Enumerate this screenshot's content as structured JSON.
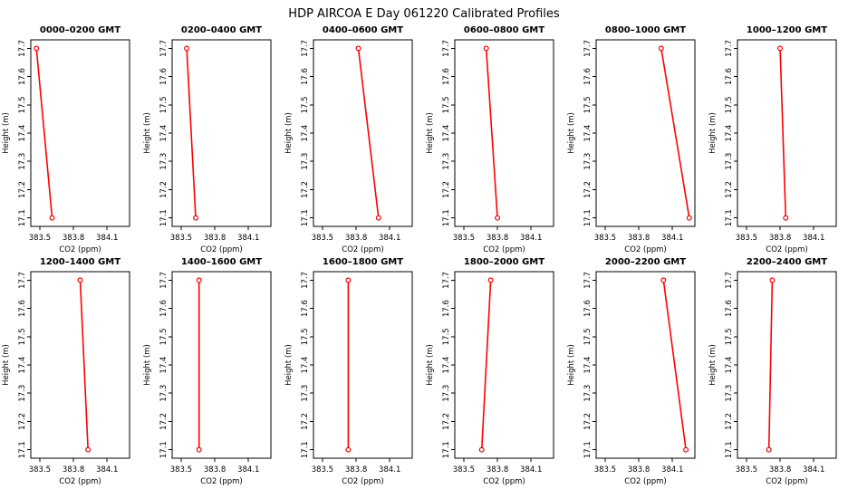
{
  "title": "HDP AIRCOA E  Day 061220  Calibrated Profiles",
  "chart_data": {
    "type": "line",
    "layout": {
      "rows": 2,
      "cols": 6,
      "grid": false,
      "legend": "none"
    },
    "xlabel": "CO2 (ppm)",
    "ylabel": "Height (m)",
    "x_ticks": [
      383.5,
      383.8,
      384.1
    ],
    "y_ticks": [
      17.1,
      17.2,
      17.3,
      17.4,
      17.5,
      17.6,
      17.7
    ],
    "xlim": [
      383.42,
      384.3
    ],
    "ylim": [
      17.07,
      17.73
    ],
    "series_color": "#ff0000",
    "marker": "open-circle",
    "panels": [
      {
        "title": "0000–0200 GMT",
        "heights": [
          17.7,
          17.1
        ],
        "co2": [
          383.47,
          383.61
        ]
      },
      {
        "title": "0200–0400 GMT",
        "heights": [
          17.7,
          17.1
        ],
        "co2": [
          383.55,
          383.63
        ]
      },
      {
        "title": "0400–0600 GMT",
        "heights": [
          17.7,
          17.1
        ],
        "co2": [
          383.82,
          384.0
        ]
      },
      {
        "title": "0600–0800 GMT",
        "heights": [
          17.7,
          17.1
        ],
        "co2": [
          383.7,
          383.8
        ]
      },
      {
        "title": "0800–1000 GMT",
        "heights": [
          17.7,
          17.1
        ],
        "co2": [
          384.0,
          384.25
        ]
      },
      {
        "title": "1000–1200 GMT",
        "heights": [
          17.7,
          17.1
        ],
        "co2": [
          383.8,
          383.85
        ]
      },
      {
        "title": "1200–1400 GMT",
        "heights": [
          17.7,
          17.1
        ],
        "co2": [
          383.86,
          383.93
        ]
      },
      {
        "title": "1400–1600 GMT",
        "heights": [
          17.7,
          17.1
        ],
        "co2": [
          383.66,
          383.66
        ]
      },
      {
        "title": "1600–1800 GMT",
        "heights": [
          17.7,
          17.1
        ],
        "co2": [
          383.73,
          383.73
        ]
      },
      {
        "title": "1800–2000 GMT",
        "heights": [
          17.7,
          17.1
        ],
        "co2": [
          383.74,
          383.66
        ]
      },
      {
        "title": "2000–2200 GMT",
        "heights": [
          17.7,
          17.1
        ],
        "co2": [
          384.02,
          384.22
        ]
      },
      {
        "title": "2200–2400 GMT",
        "heights": [
          17.7,
          17.1
        ],
        "co2": [
          383.73,
          383.7
        ]
      }
    ]
  }
}
